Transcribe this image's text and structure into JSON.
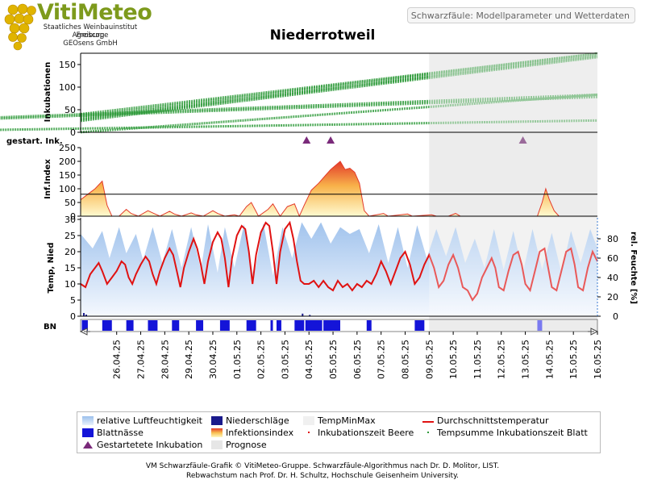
{
  "header": {
    "brand": "VitiMeteo",
    "institution_lines": [
      "Staatliches Weinbauinstitut Freiburg",
      "Agroscope",
      "GEOsens GmbH"
    ],
    "subtitle": "Schwarzfäule: Modellparameter und Wetterdaten",
    "station": "Niederrotweil"
  },
  "colors": {
    "incubation": "#2e9a3a",
    "humidity": "#a9c8ee",
    "rain": "#1a1a8c",
    "leaf_wetness": "#1414d8",
    "infection_top": "#e33a2a",
    "infection_bottom": "#fff8c0",
    "temperature": "#e01212",
    "forecast_bg": "#ececec",
    "marker": "#7a2a7a"
  },
  "panels": {
    "incubations": {
      "ylabel": "Inkubationen",
      "ticks": [
        "0",
        "50",
        "100",
        "150"
      ]
    },
    "started": {
      "ylabel": "gestart. Ink."
    },
    "infection": {
      "ylabel": "Inf.Index",
      "ticks": [
        "0",
        "50",
        "100",
        "150",
        "200",
        "250"
      ]
    },
    "weather": {
      "ylabel_left": "Temp, Nied",
      "ticks_left": [
        "0",
        "5",
        "10",
        "15",
        "20",
        "25",
        "30"
      ],
      "ylabel_right": "rel. Feuchte [%]",
      "ticks_right": [
        "0",
        "20",
        "40",
        "60",
        "80"
      ]
    },
    "leaf_wetness": {
      "ylabel": "BN"
    }
  },
  "chart_data": {
    "type": "line",
    "x_dates": [
      "26.04.25",
      "27.04.25",
      "28.04.25",
      "29.04.25",
      "30.04.25",
      "01.05.25",
      "02.05.25",
      "03.05.25",
      "04.05.25",
      "05.05.25",
      "06.05.25",
      "07.05.25",
      "08.05.25",
      "09.05.25",
      "10.05.25",
      "11.05.25",
      "12.05.25",
      "13.05.25",
      "14.05.25",
      "15.05.25",
      "16.05.25"
    ],
    "forecast_start": "09.05.25",
    "incubation_ylim": [
      0,
      175
    ],
    "incubation_series": [
      {
        "start": [
          25,
          42
        ],
        "end": [
          16.5,
          176
        ]
      },
      {
        "start": [
          25,
          37
        ],
        "end": [
          16.5,
          176
        ]
      },
      {
        "start": [
          25,
          33
        ],
        "end": [
          16.5,
          172
        ]
      },
      {
        "start": [
          25,
          30
        ],
        "end": [
          16.5,
          170
        ]
      },
      {
        "start": [
          25,
          27
        ],
        "end": [
          16.5,
          168
        ]
      },
      {
        "start": [
          25,
          2
        ],
        "end": [
          16.5,
          85
        ]
      },
      {
        "start": [
          4.3,
          0
        ],
        "end": [
          16.5,
          85
        ]
      },
      {
        "start": [
          4.9,
          0
        ],
        "end": [
          16.5,
          80
        ]
      },
      {
        "start": [
          13,
          0
        ],
        "end": [
          16.5,
          28
        ]
      }
    ],
    "started_incubations": [
      "04.05.25",
      "05.05.25",
      "13.05.25"
    ],
    "infection_ylim": [
      0,
      250
    ],
    "infection_threshold": 80,
    "infection_index": [
      [
        25.0,
        60
      ],
      [
        25.3,
        80
      ],
      [
        25.6,
        100
      ],
      [
        25.9,
        128
      ],
      [
        26.1,
        40
      ],
      [
        26.3,
        0
      ],
      [
        26.6,
        0
      ],
      [
        26.9,
        25
      ],
      [
        27.1,
        10
      ],
      [
        27.4,
        0
      ],
      [
        27.8,
        20
      ],
      [
        28.0,
        12
      ],
      [
        28.3,
        0
      ],
      [
        28.7,
        18
      ],
      [
        28.9,
        8
      ],
      [
        29.2,
        0
      ],
      [
        29.6,
        12
      ],
      [
        29.8,
        5
      ],
      [
        30.1,
        0
      ],
      [
        30.5,
        20
      ],
      [
        30.7,
        10
      ],
      [
        31.0,
        0
      ],
      [
        31.4,
        5
      ],
      [
        31.6,
        0
      ],
      [
        31.9,
        35
      ],
      [
        32.1,
        50
      ],
      [
        32.4,
        0
      ],
      [
        32.8,
        25
      ],
      [
        33.0,
        45
      ],
      [
        33.3,
        0
      ],
      [
        33.6,
        35
      ],
      [
        33.9,
        45
      ],
      [
        34.1,
        0
      ],
      [
        34.3,
        40
      ],
      [
        34.6,
        95
      ],
      [
        34.9,
        120
      ],
      [
        35.2,
        150
      ],
      [
        35.4,
        170
      ],
      [
        35.6,
        185
      ],
      [
        35.8,
        200
      ],
      [
        36.0,
        170
      ],
      [
        36.2,
        175
      ],
      [
        36.4,
        160
      ],
      [
        36.6,
        120
      ],
      [
        36.8,
        20
      ],
      [
        37.0,
        0
      ],
      [
        37.6,
        10
      ],
      [
        37.8,
        0
      ],
      [
        38.6,
        8
      ],
      [
        38.8,
        0
      ],
      [
        39.6,
        5
      ],
      [
        39.8,
        0
      ],
      [
        40.3,
        0
      ],
      [
        40.6,
        10
      ],
      [
        40.8,
        0
      ],
      [
        44.0,
        0
      ],
      [
        44.2,
        50
      ],
      [
        44.35,
        100
      ],
      [
        44.5,
        60
      ],
      [
        44.7,
        20
      ],
      [
        44.9,
        0
      ],
      [
        46.5,
        0
      ]
    ],
    "temperature_ylim": [
      0,
      30
    ],
    "humidity_ylim": [
      0,
      100
    ],
    "temperature_avg": [
      [
        25.0,
        10
      ],
      [
        25.2,
        9
      ],
      [
        25.4,
        13
      ],
      [
        25.6,
        15
      ],
      [
        25.75,
        16.5
      ],
      [
        25.9,
        14
      ],
      [
        26.1,
        10
      ],
      [
        26.3,
        12
      ],
      [
        26.5,
        14
      ],
      [
        26.7,
        17
      ],
      [
        26.85,
        16
      ],
      [
        27.0,
        12
      ],
      [
        27.15,
        10
      ],
      [
        27.3,
        13
      ],
      [
        27.5,
        16
      ],
      [
        27.7,
        18.5
      ],
      [
        27.85,
        17
      ],
      [
        28.0,
        13
      ],
      [
        28.15,
        10
      ],
      [
        28.3,
        14
      ],
      [
        28.5,
        18
      ],
      [
        28.7,
        21
      ],
      [
        28.85,
        19
      ],
      [
        29.0,
        14
      ],
      [
        29.15,
        9
      ],
      [
        29.3,
        15
      ],
      [
        29.5,
        20
      ],
      [
        29.7,
        24
      ],
      [
        29.85,
        21
      ],
      [
        30.0,
        16
      ],
      [
        30.15,
        10
      ],
      [
        30.3,
        17
      ],
      [
        30.5,
        23
      ],
      [
        30.7,
        26
      ],
      [
        30.85,
        24
      ],
      [
        31.0,
        18
      ],
      [
        31.15,
        9
      ],
      [
        31.3,
        18
      ],
      [
        31.5,
        25
      ],
      [
        31.7,
        28
      ],
      [
        31.85,
        27
      ],
      [
        32.0,
        20
      ],
      [
        32.15,
        10
      ],
      [
        32.3,
        19
      ],
      [
        32.5,
        26
      ],
      [
        32.7,
        29
      ],
      [
        32.85,
        28
      ],
      [
        33.0,
        20
      ],
      [
        33.15,
        10
      ],
      [
        33.3,
        20
      ],
      [
        33.5,
        27
      ],
      [
        33.7,
        29
      ],
      [
        33.85,
        24
      ],
      [
        34.0,
        17
      ],
      [
        34.15,
        11
      ],
      [
        34.3,
        10
      ],
      [
        34.5,
        10
      ],
      [
        34.7,
        11
      ],
      [
        34.9,
        9
      ],
      [
        35.1,
        11
      ],
      [
        35.3,
        9
      ],
      [
        35.5,
        8
      ],
      [
        35.7,
        11
      ],
      [
        35.9,
        9
      ],
      [
        36.1,
        10
      ],
      [
        36.3,
        8
      ],
      [
        36.5,
        10
      ],
      [
        36.7,
        9
      ],
      [
        36.9,
        11
      ],
      [
        37.1,
        10
      ],
      [
        37.3,
        13
      ],
      [
        37.5,
        17
      ],
      [
        37.7,
        14
      ],
      [
        37.9,
        10
      ],
      [
        38.1,
        14
      ],
      [
        38.3,
        18
      ],
      [
        38.5,
        20
      ],
      [
        38.7,
        16
      ],
      [
        38.9,
        10
      ],
      [
        39.1,
        12
      ],
      [
        39.3,
        16
      ],
      [
        39.5,
        19
      ],
      [
        39.7,
        15
      ],
      [
        39.9,
        9
      ],
      [
        40.1,
        11
      ],
      [
        40.3,
        16
      ],
      [
        40.5,
        19
      ],
      [
        40.7,
        15
      ],
      [
        40.9,
        9
      ],
      [
        41.1,
        8
      ],
      [
        41.3,
        5
      ],
      [
        41.5,
        7
      ],
      [
        41.7,
        12
      ],
      [
        41.9,
        15
      ],
      [
        42.1,
        18
      ],
      [
        42.25,
        15
      ],
      [
        42.4,
        9
      ],
      [
        42.6,
        8
      ],
      [
        42.8,
        14
      ],
      [
        43.0,
        19
      ],
      [
        43.2,
        20
      ],
      [
        43.35,
        16
      ],
      [
        43.5,
        10
      ],
      [
        43.7,
        8
      ],
      [
        43.9,
        14
      ],
      [
        44.1,
        20
      ],
      [
        44.3,
        21
      ],
      [
        44.45,
        15
      ],
      [
        44.6,
        9
      ],
      [
        44.8,
        8
      ],
      [
        45.0,
        14
      ],
      [
        45.2,
        20
      ],
      [
        45.4,
        21
      ],
      [
        45.55,
        16
      ],
      [
        45.7,
        9
      ],
      [
        45.9,
        8
      ],
      [
        46.1,
        15
      ],
      [
        46.3,
        20
      ],
      [
        46.5,
        17
      ]
    ],
    "humidity": [
      [
        25.0,
        85
      ],
      [
        25.5,
        70
      ],
      [
        25.9,
        88
      ],
      [
        26.2,
        60
      ],
      [
        26.6,
        92
      ],
      [
        26.9,
        65
      ],
      [
        27.3,
        85
      ],
      [
        27.6,
        58
      ],
      [
        28.0,
        92
      ],
      [
        28.4,
        55
      ],
      [
        28.8,
        90
      ],
      [
        29.2,
        50
      ],
      [
        29.6,
        92
      ],
      [
        30.0,
        48
      ],
      [
        30.3,
        95
      ],
      [
        30.7,
        45
      ],
      [
        31.0,
        92
      ],
      [
        31.4,
        50
      ],
      [
        31.8,
        95
      ],
      [
        32.2,
        40
      ],
      [
        32.6,
        96
      ],
      [
        33.0,
        42
      ],
      [
        33.4,
        92
      ],
      [
        33.8,
        60
      ],
      [
        34.2,
        97
      ],
      [
        34.6,
        80
      ],
      [
        35.0,
        97
      ],
      [
        35.4,
        75
      ],
      [
        35.8,
        92
      ],
      [
        36.2,
        85
      ],
      [
        36.6,
        90
      ],
      [
        37.0,
        65
      ],
      [
        37.4,
        95
      ],
      [
        37.8,
        55
      ],
      [
        38.2,
        92
      ],
      [
        38.6,
        50
      ],
      [
        39.0,
        94
      ],
      [
        39.4,
        60
      ],
      [
        39.8,
        90
      ],
      [
        40.2,
        62
      ],
      [
        40.6,
        92
      ],
      [
        41.0,
        55
      ],
      [
        41.4,
        80
      ],
      [
        41.8,
        50
      ],
      [
        42.2,
        90
      ],
      [
        42.6,
        48
      ],
      [
        43.0,
        88
      ],
      [
        43.4,
        45
      ],
      [
        43.8,
        90
      ],
      [
        44.2,
        48
      ],
      [
        44.6,
        86
      ],
      [
        45.0,
        45
      ],
      [
        45.4,
        88
      ],
      [
        45.8,
        55
      ],
      [
        46.2,
        90
      ],
      [
        46.5,
        70
      ]
    ],
    "leaf_wetness_intervals": [
      [
        25.05,
        25.3
      ],
      [
        25.9,
        26.3
      ],
      [
        26.9,
        27.2
      ],
      [
        27.8,
        28.2
      ],
      [
        28.8,
        29.1
      ],
      [
        29.8,
        30.1
      ],
      [
        30.8,
        31.2
      ],
      [
        31.9,
        32.3
      ],
      [
        32.9,
        33.0
      ],
      [
        33.15,
        33.35
      ],
      [
        33.9,
        34.3
      ],
      [
        34.35,
        35.05
      ],
      [
        35.1,
        35.8
      ],
      [
        36.9,
        37.1
      ],
      [
        38.9,
        39.3
      ],
      [
        44.0,
        44.2
      ]
    ],
    "rain_mm": [
      [
        25.1,
        1.0
      ],
      [
        25.2,
        0.5
      ],
      [
        34.2,
        0.8
      ],
      [
        34.5,
        0.4
      ]
    ]
  },
  "legend": [
    {
      "label": "relative Luftfeuchtigkeit",
      "swatch": "humidity"
    },
    {
      "label": "Niederschläge",
      "swatch": "rain"
    },
    {
      "label": "TempMinMax",
      "swatch": "minmax"
    },
    {
      "label": "Durchschnittstemperatur",
      "swatch": "tempavg"
    },
    {
      "label": "Blattnässe",
      "swatch": "leaf"
    },
    {
      "label": "Infektionsindex",
      "swatch": "infection"
    },
    {
      "label": "Inkubationszeit Beere",
      "swatch": "dot-red"
    },
    {
      "label": "Tempsumme Inkubationszeit Blatt",
      "swatch": "dot-green"
    },
    {
      "label": "Gestartetete Inkubation",
      "swatch": "triangle"
    },
    {
      "label": "Prognose",
      "swatch": "forecast"
    }
  ],
  "footer": [
    "VM Schwarzfäule-Grafik © VitiMeteo-Gruppe. Schwarzfäule-Algorithmus nach Dr. D. Molitor, LIST.",
    "Rebwachstum nach Prof. Dr. H. Schultz, Hochschule Geisenheim University."
  ]
}
